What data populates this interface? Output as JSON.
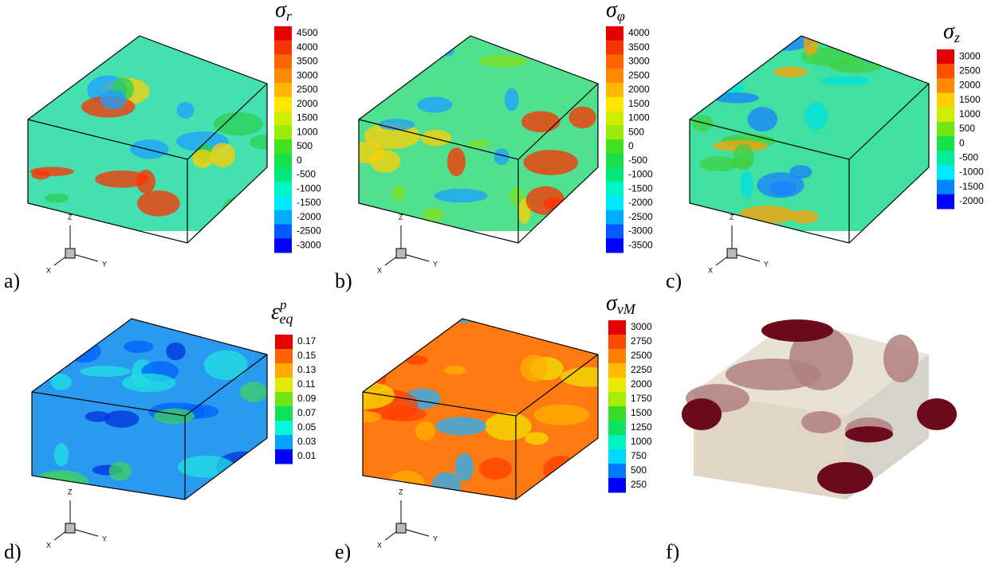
{
  "panels": [
    {
      "label": "a)",
      "colorbar": {
        "title": {
          "symbol": "σ",
          "sub": "r"
        },
        "ticks": [
          4500,
          4000,
          3500,
          3000,
          2500,
          2000,
          1500,
          1000,
          500,
          0,
          -500,
          -1000,
          -1500,
          -2000,
          -2500,
          -3000
        ]
      },
      "triad": {
        "x": "X",
        "y": "Y",
        "z": "Z"
      }
    },
    {
      "label": "b)",
      "colorbar": {
        "title": {
          "symbol": "σ",
          "sub": "φ"
        },
        "ticks": [
          4000,
          3500,
          3000,
          2500,
          2000,
          1500,
          1000,
          500,
          0,
          -500,
          -1000,
          -1500,
          -2000,
          -2500,
          -3000,
          -3500
        ]
      },
      "triad": {
        "x": "X",
        "y": "Y",
        "z": "Z"
      }
    },
    {
      "label": "c)",
      "colorbar": {
        "title": {
          "symbol": "σ",
          "sub": "z"
        },
        "ticks": [
          3000,
          2500,
          2000,
          1500,
          1000,
          500,
          0,
          -500,
          -1000,
          -1500,
          -2000
        ]
      },
      "triad": {
        "x": "X",
        "y": "Y",
        "z": "Z"
      }
    },
    {
      "label": "d)",
      "colorbar": {
        "title": {
          "symbol": "ε",
          "sub": "eq",
          "sup": "p"
        },
        "ticks": [
          0.17,
          0.15,
          0.13,
          0.11,
          0.09,
          0.07,
          0.05,
          0.03,
          0.01
        ]
      },
      "triad": {
        "x": "X",
        "y": "Y",
        "z": "Z"
      }
    },
    {
      "label": "e)",
      "colorbar": {
        "title": {
          "symbol": "σ",
          "sub": "vM"
        },
        "ticks": [
          3000,
          2750,
          2500,
          2250,
          2000,
          1750,
          1500,
          1250,
          1000,
          750,
          500,
          250
        ]
      },
      "triad": {
        "x": "X",
        "y": "Y",
        "z": "Z"
      }
    },
    {
      "label": "f)"
    }
  ]
}
